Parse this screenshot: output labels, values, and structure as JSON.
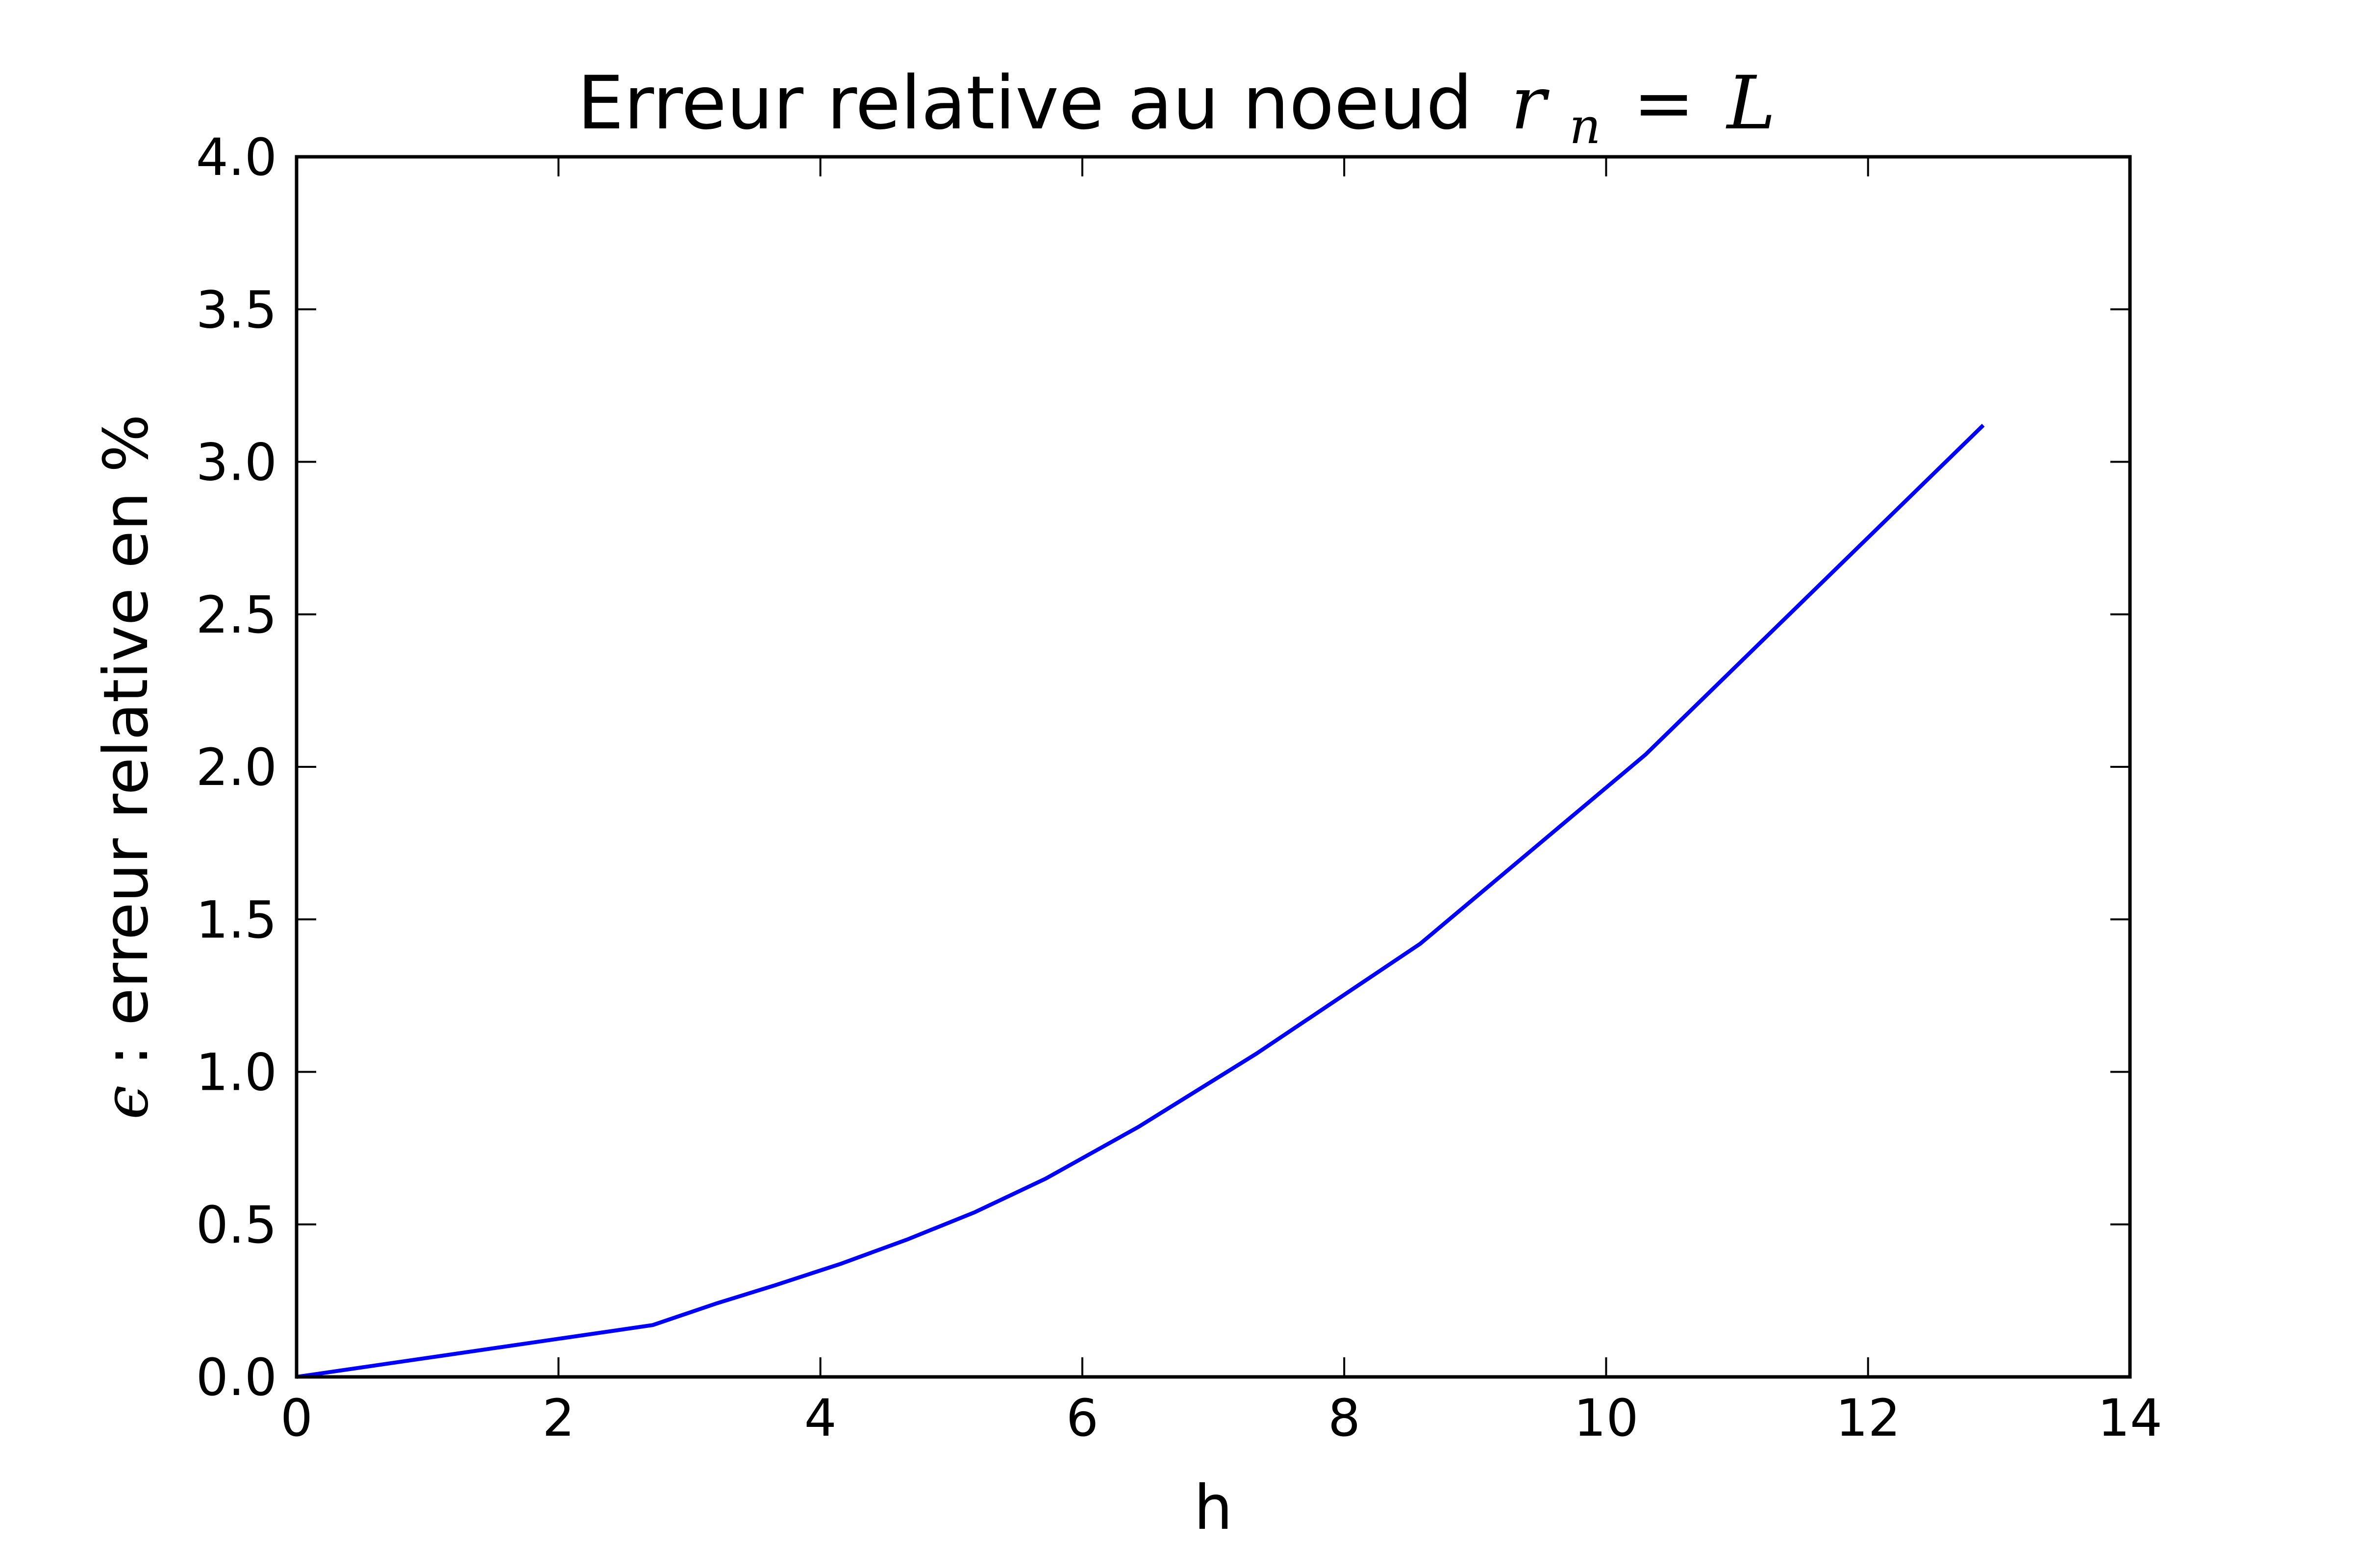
{
  "chart_data": {
    "type": "line",
    "title": "Erreur relative au noeud",
    "title_math": {
      "var": "r",
      "sub": "n",
      "op": "=",
      "rhs": "L"
    },
    "xlabel": "h",
    "ylabel_math": "ϵ",
    "ylabel": " : erreur relative en %",
    "xlim": [
      0,
      14
    ],
    "ylim": [
      0,
      4.0
    ],
    "x_ticks": [
      0,
      2,
      4,
      6,
      8,
      10,
      12,
      14
    ],
    "x_tick_labels": [
      "0",
      "2",
      "4",
      "6",
      "8",
      "10",
      "12",
      "14"
    ],
    "y_ticks": [
      0,
      0.5,
      1.0,
      1.5,
      2.0,
      2.5,
      3.0,
      3.5,
      4.0
    ],
    "y_tick_labels": [
      "0.0",
      "0.5",
      "1.0",
      "1.5",
      "2.0",
      "2.5",
      "3.0",
      "3.5",
      "4.0"
    ],
    "grid": false,
    "series": [
      {
        "color": "#0000ff",
        "x": [
          0,
          2.72,
          3.2,
          3.65,
          4.15,
          4.66,
          5.18,
          5.72,
          6.43,
          7.33,
          8.58,
          10.3,
          12.88
        ],
        "y": [
          0,
          0.17,
          0.24,
          0.3,
          0.37,
          0.45,
          0.54,
          0.65,
          0.82,
          1.06,
          1.42,
          2.04,
          3.12
        ]
      }
    ]
  }
}
